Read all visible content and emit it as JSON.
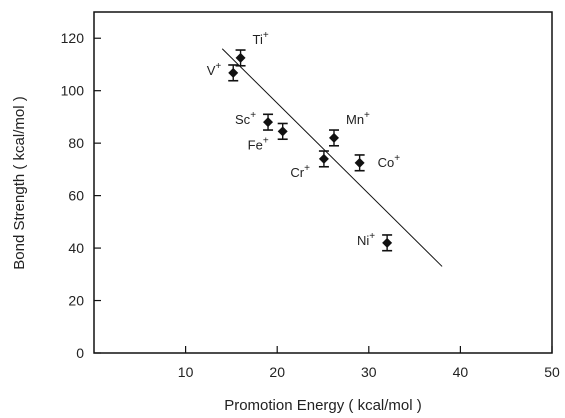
{
  "chart_data": {
    "type": "scatter",
    "title": "",
    "xlabel": "Promotion Energy ( kcal/mol )",
    "ylabel": "Bond Strength ( kcal/mol )",
    "xlim": [
      0,
      50
    ],
    "ylim": [
      0,
      130
    ],
    "xticks": [
      10,
      20,
      30,
      40,
      50
    ],
    "yticks": [
      0,
      20,
      40,
      60,
      80,
      100,
      120
    ],
    "grid": false,
    "points": [
      {
        "label": "Ti",
        "sup": "+",
        "x": 16.0,
        "y": 112.5,
        "err": 3.0,
        "label_pos": "upper-right"
      },
      {
        "label": "V",
        "sup": "+",
        "x": 15.2,
        "y": 106.8,
        "err": 3.0,
        "label_pos": "left"
      },
      {
        "label": "Sc",
        "sup": "+",
        "x": 19.0,
        "y": 88.0,
        "err": 3.0,
        "label_pos": "left"
      },
      {
        "label": "Fe",
        "sup": "+",
        "x": 20.6,
        "y": 84.5,
        "err": 3.0,
        "label_pos": "lower-left"
      },
      {
        "label": "Mn",
        "sup": "+",
        "x": 26.2,
        "y": 82.0,
        "err": 3.0,
        "label_pos": "upper-right"
      },
      {
        "label": "Cr",
        "sup": "+",
        "x": 25.1,
        "y": 74.0,
        "err": 3.0,
        "label_pos": "lower-left"
      },
      {
        "label": "Co",
        "sup": "+",
        "x": 29.0,
        "y": 72.5,
        "err": 3.0,
        "label_pos": "right"
      },
      {
        "label": "Ni",
        "sup": "+",
        "x": 32.0,
        "y": 42.0,
        "err": 3.0,
        "label_pos": "left"
      }
    ],
    "fit_line": {
      "x": [
        14.0,
        38.0
      ],
      "y": [
        116.0,
        33.0
      ]
    }
  }
}
